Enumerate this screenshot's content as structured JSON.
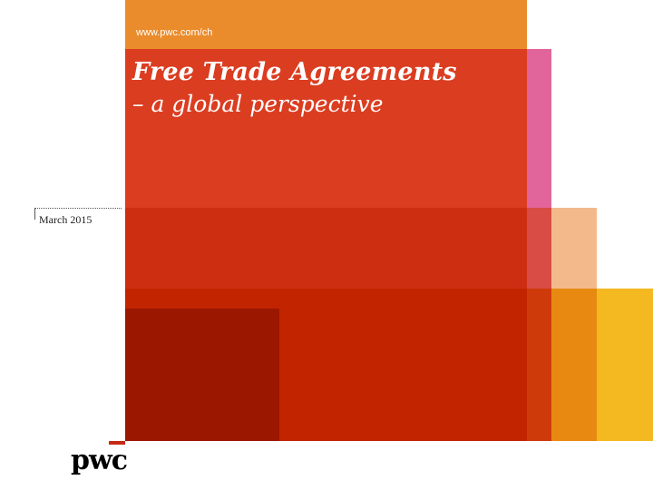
{
  "header": {
    "url": "www.pwc.com/ch"
  },
  "slide": {
    "title": "Free Trade Agreements",
    "subtitle": "– a global perspective",
    "date": "March 2015"
  },
  "brand": {
    "logo_text": "pwc",
    "colors": {
      "orange": "#eb8c2c",
      "red": "#db3d21",
      "pink": "#e1649a",
      "dark_red": "#9b1700",
      "yellow": "#f4b921",
      "peach": "#f3b98a"
    }
  }
}
